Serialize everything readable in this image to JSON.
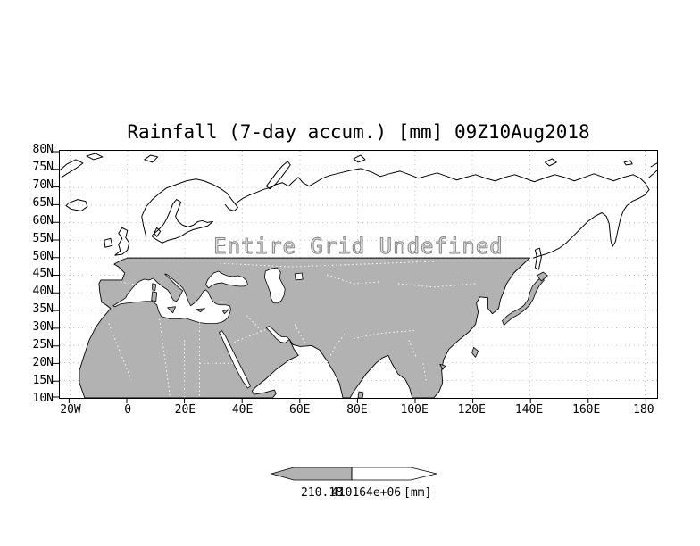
{
  "title": "Rainfall (7-day accum.) [mm] 09Z10Aug2018",
  "map": {
    "annotation": "Entire Grid Undefined",
    "y_axis_labels": [
      "80N",
      "75N",
      "70N",
      "65N",
      "60N",
      "55N",
      "50N",
      "45N",
      "40N",
      "35N",
      "30N",
      "25N",
      "20N",
      "15N",
      "10N"
    ],
    "x_axis_labels": [
      "20W",
      "0",
      "20E",
      "40E",
      "60E",
      "80E",
      "100E",
      "120E",
      "140E",
      "160E",
      "180"
    ]
  },
  "legend": {
    "labels": [
      "210.18",
      "41016",
      "4e+06",
      "[mm]"
    ]
  },
  "colors": {
    "land_fill": "#b2b2b2",
    "coastline": "#000000",
    "background": "#ffffff",
    "annotation_fill": "#e2e2e2",
    "annotation_outline": "#8a8a8a"
  },
  "chart_data": {
    "type": "heatmap",
    "title": "Rainfall (7-day accum.) [mm] 09Z10Aug2018",
    "variable": "Rainfall (7-day accum.)",
    "units": "[mm]",
    "valid_time": "09Z10Aug2018",
    "x_ticks": [
      "20W",
      "0",
      "20E",
      "40E",
      "60E",
      "80E",
      "100E",
      "120E",
      "140E",
      "160E",
      "180"
    ],
    "y_ticks": [
      "80N",
      "75N",
      "70N",
      "65N",
      "60N",
      "55N",
      "50N",
      "45N",
      "40N",
      "35N",
      "30N",
      "25N",
      "20N",
      "15N",
      "10N"
    ],
    "lon_range_deg": [
      -24,
      184
    ],
    "lat_range_deg": [
      10,
      80
    ],
    "values": [],
    "status": "Entire Grid Undefined",
    "legend_tick_values": [
      "210.18",
      "41016",
      "4e+06"
    ],
    "grid": true,
    "legend_position": "bottom-center"
  }
}
